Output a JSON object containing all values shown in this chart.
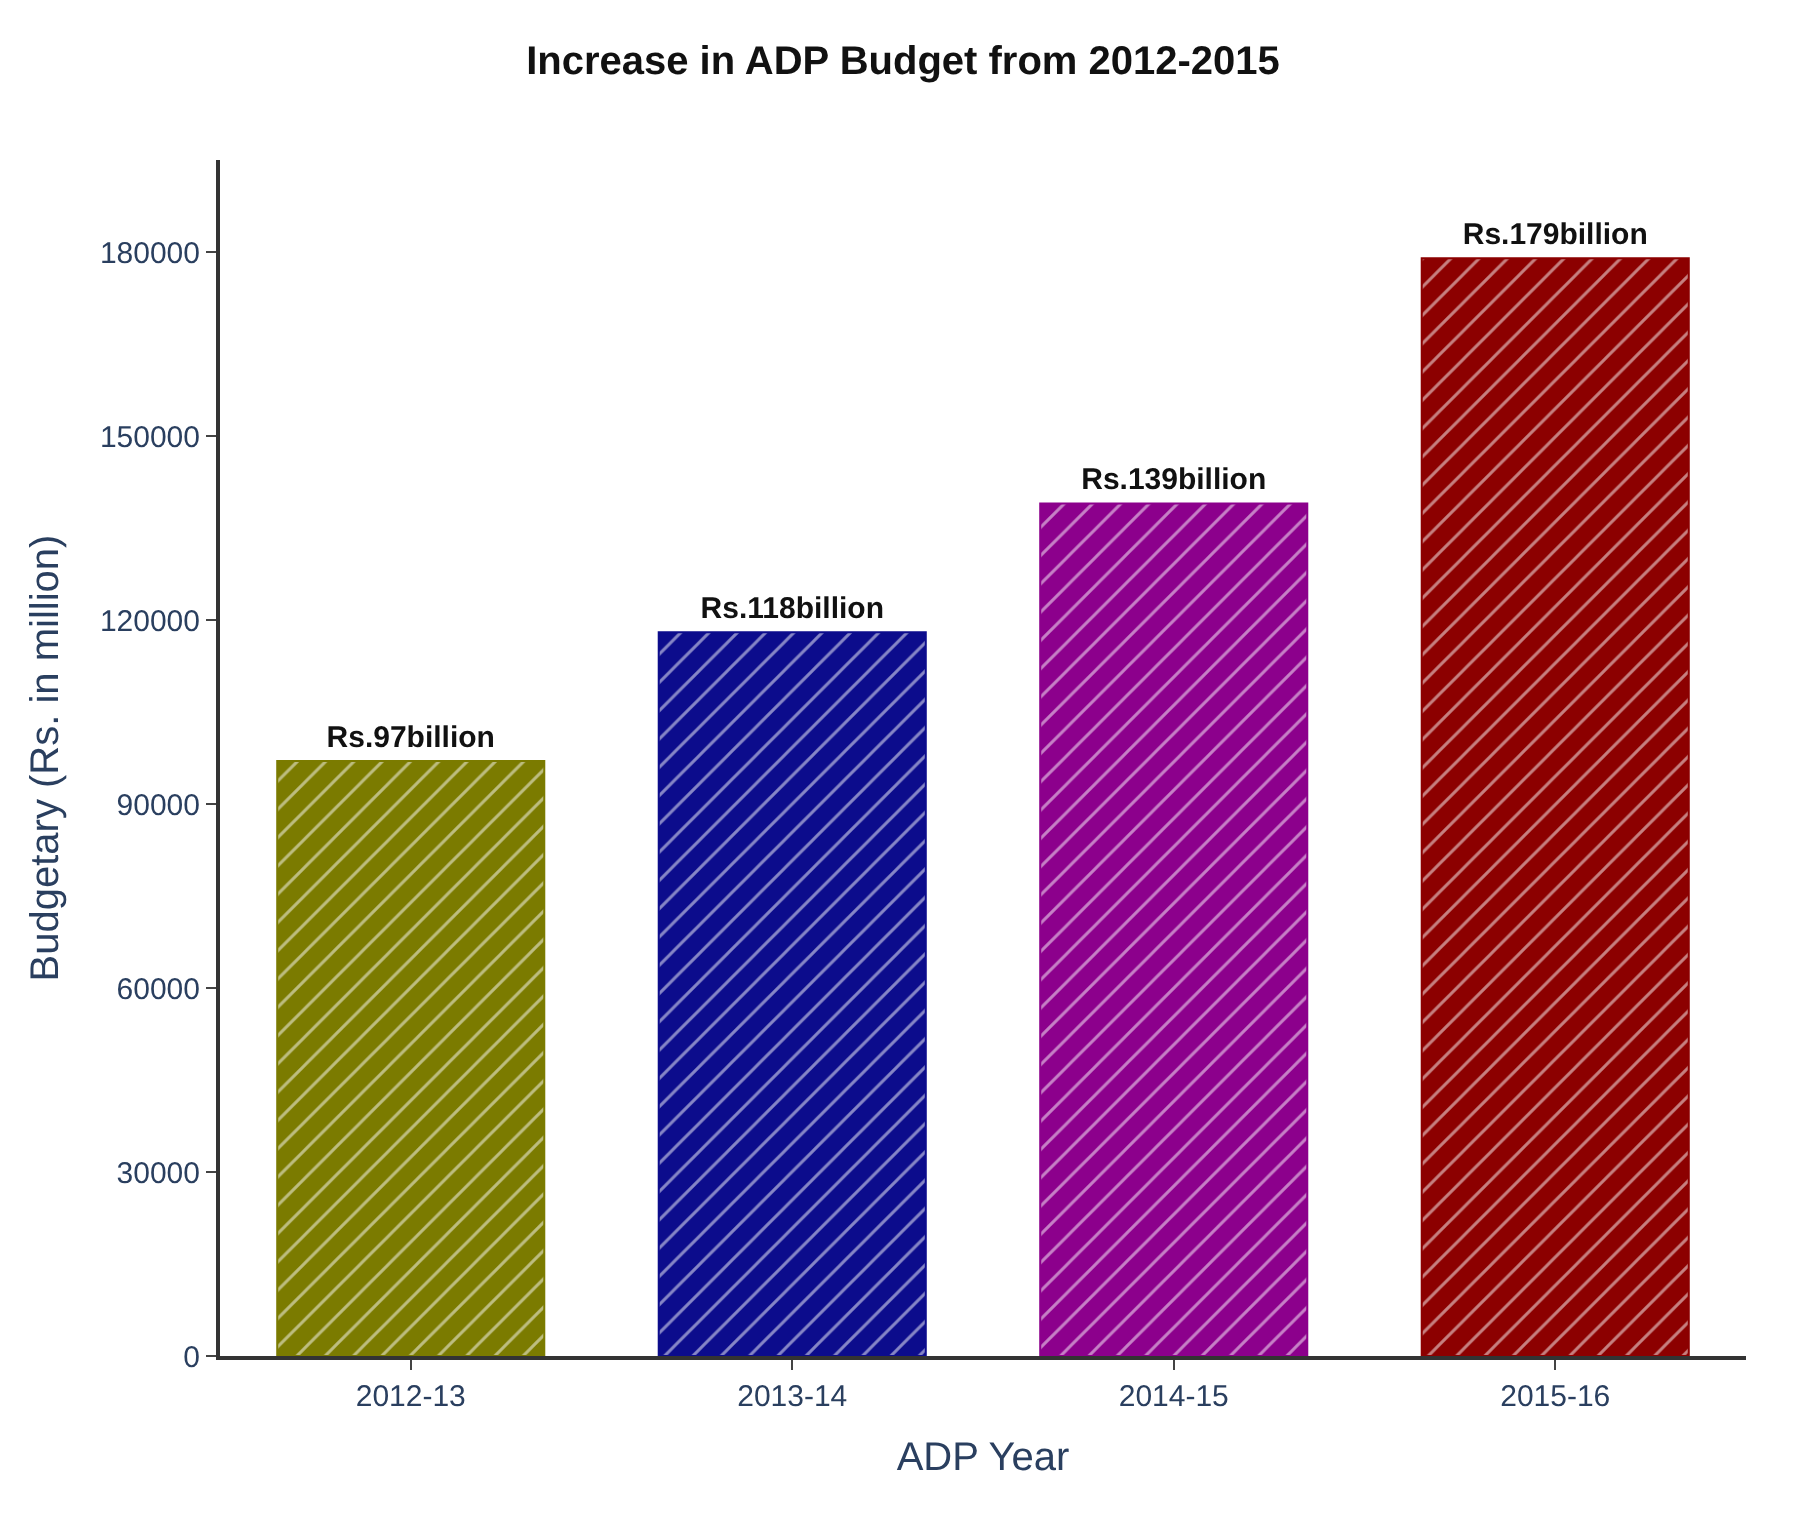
{
  "chart_data": {
    "type": "bar",
    "title": "Increase in ADP Budget from 2012-2015",
    "xlabel": "ADP Year",
    "ylabel": "Budgetary (Rs. in million)",
    "categories": [
      "2012-13",
      "2013-14",
      "2014-15",
      "2015-16"
    ],
    "values": [
      97000,
      118000,
      139000,
      179000
    ],
    "colors": [
      "#7b7b00",
      "#0c0c8c",
      "#8c008c",
      "#8c0000"
    ],
    "value_labels": [
      "Rs.97billion",
      "Rs.118billion",
      "Rs.139billion",
      "Rs.179billion"
    ],
    "ylim": [
      0,
      195000
    ],
    "yticks": [
      0,
      30000,
      60000,
      90000,
      120000,
      150000,
      180000
    ]
  }
}
